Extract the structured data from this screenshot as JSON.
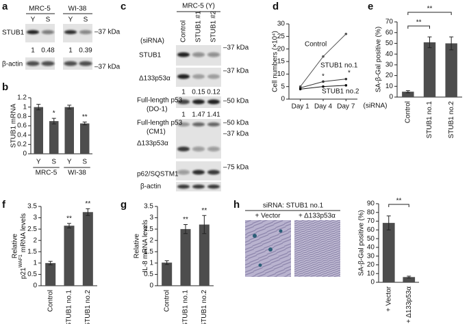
{
  "figure": {
    "panel_labels": [
      "a",
      "b",
      "c",
      "d",
      "e",
      "f",
      "g",
      "h"
    ]
  },
  "blots": {
    "a": {
      "cell_lines": [
        "MRC-5",
        "WI-38"
      ],
      "lanes": [
        "Y",
        "S",
        "Y",
        "S"
      ],
      "rows": [
        "STUB1",
        "β-actin"
      ],
      "markers": [
        "–37 kDa",
        "–37 kDa"
      ],
      "quant": [
        1,
        0.48,
        1,
        0.39
      ]
    },
    "c": {
      "title": "MRC-5 (Y)",
      "sirna_label": "(siRNA)",
      "lanes": [
        "Control",
        "STUB1 #1",
        "STUB1 #2"
      ],
      "rows": [
        "STUB1",
        "Δ133p53α",
        "Full-length p53",
        "(DO-1)",
        "Full-length p53",
        "(CM1)",
        "Δ133p53α",
        "p62/SQSTM1",
        "β-actin"
      ],
      "markers": [
        "–37 kDa",
        "–37 kDa",
        "–50 kDa",
        "–50 kDa",
        "–37 kDa",
        "–75 kDa"
      ],
      "quant_d133": [
        1,
        0.15,
        0.12
      ],
      "quant_fl": [
        1,
        1.47,
        1.41
      ]
    },
    "h": {
      "title": "siRNA: STUB1 no.1",
      "conditions": [
        "+ Vector",
        "+ Δ133p53α"
      ]
    }
  },
  "chart_data": [
    {
      "type": "bar",
      "ylabel": "STUB1 mRNA",
      "categories": [
        "Y",
        "S",
        "Y",
        "S"
      ],
      "groups": [
        "MRC-5",
        "WI-38"
      ],
      "values": [
        1,
        0.7,
        1,
        0.65
      ],
      "errors": [
        0.06,
        0.06,
        0.04,
        0.03
      ],
      "color": "#4d4d4d",
      "ylim": [
        0,
        1.2
      ],
      "yticks": [
        0,
        0.2,
        0.4,
        0.6,
        0.8,
        1,
        1.2
      ],
      "annotations": [
        "*",
        "**"
      ]
    },
    {
      "type": "line",
      "ylabel": "Cell numbers (×10⁴)",
      "categories": [
        "Day 1",
        "Day 4",
        "Day 7"
      ],
      "series": [
        {
          "name": "Control",
          "color": "#555555",
          "values": [
            5,
            17,
            26
          ]
        },
        {
          "name": "STUB1 no.1",
          "color": "#333333",
          "values": [
            4.5,
            7,
            8
          ]
        },
        {
          "name": "STUB1 no.2",
          "color": "#111111",
          "values": [
            4,
            5,
            5.5
          ]
        }
      ],
      "ylim": [
        0,
        30
      ],
      "yticks": [
        0,
        5,
        10,
        15,
        20,
        25,
        30
      ],
      "annotations": [
        "*",
        "*"
      ]
    },
    {
      "type": "bar",
      "ylabel": "SA-β-Gal positive (%)",
      "xlabel": "(siRNA)",
      "categories": [
        "Control",
        "STUB1 no.1",
        "STUB1 no.2"
      ],
      "values": [
        5,
        51,
        50
      ],
      "errors": [
        1,
        5,
        6
      ],
      "color": "#4d4d4d",
      "ylim": [
        0,
        70
      ],
      "yticks": [
        0,
        10,
        20,
        30,
        40,
        50,
        60,
        70
      ],
      "annotations": [
        "**",
        "**"
      ]
    },
    {
      "type": "bar",
      "ylabel": "Relative",
      "ylabel_line2": {
        "text": "p21",
        "sup": "WAF1",
        "rest": "mRNA levels"
      },
      "categories": [
        "Control",
        "STUB1 no.1",
        "STUB1 no.2"
      ],
      "values": [
        1,
        2.65,
        3.25
      ],
      "errors": [
        0.08,
        0.1,
        0.15
      ],
      "color": "#4d4d4d",
      "ylim": [
        0,
        3.5
      ],
      "yticks": [
        0,
        0.5,
        1,
        1.5,
        2,
        2.5,
        3,
        3.5
      ],
      "annotations": [
        "**",
        "**"
      ]
    },
    {
      "type": "bar",
      "ylabel": "Relative",
      "ylabel_line2": {
        "text": "IL-8 mRNA levels"
      },
      "categories": [
        "Control",
        "STUB1 no.1",
        "STUB1 no.2"
      ],
      "values": [
        1.02,
        2.5,
        2.7
      ],
      "errors": [
        0.08,
        0.2,
        0.4
      ],
      "color": "#4d4d4d",
      "ylim": [
        0,
        3.5
      ],
      "yticks": [
        0,
        0.5,
        1,
        1.5,
        2,
        2.5,
        3,
        3.5
      ],
      "annotations": [
        "**",
        "**"
      ]
    },
    {
      "type": "bar",
      "ylabel": "SA-β-Gal positive (%)",
      "categories": [
        "+ Vector",
        "+ Δ133p53α"
      ],
      "values": [
        68,
        6
      ],
      "errors": [
        8,
        1
      ],
      "color": "#4d4d4d",
      "ylim": [
        0,
        90
      ],
      "yticks": [
        0,
        10,
        20,
        30,
        40,
        50,
        60,
        70,
        80,
        90
      ],
      "annotations": [
        "**"
      ]
    }
  ]
}
